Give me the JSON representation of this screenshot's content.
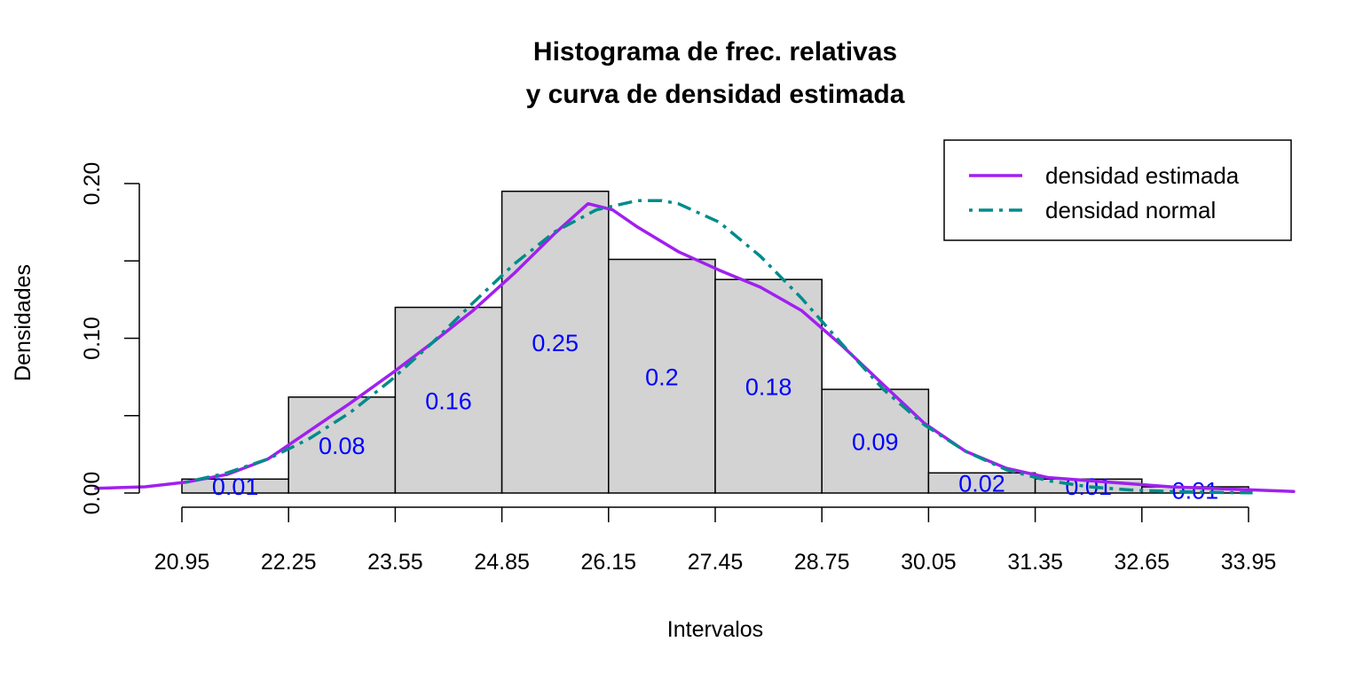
{
  "chart_data": {
    "type": "bar",
    "title": [
      "Histograma de frec. relativas",
      "y curva de densidad estimada"
    ],
    "xlabel": "Intervalos",
    "ylabel": "Densidades",
    "x_ticks": [
      "20.95",
      "22.25",
      "23.55",
      "24.85",
      "26.15",
      "27.45",
      "28.75",
      "30.05",
      "31.35",
      "32.65",
      "33.95"
    ],
    "y_ticks": [
      "0.00",
      "0.10",
      "0.20"
    ],
    "ylim": [
      0,
      0.2
    ],
    "bins": [
      {
        "from": 20.95,
        "to": 22.25,
        "density": 0.009,
        "label": "0.01"
      },
      {
        "from": 22.25,
        "to": 23.55,
        "density": 0.062,
        "label": "0.08"
      },
      {
        "from": 23.55,
        "to": 24.85,
        "density": 0.12,
        "label": "0.16"
      },
      {
        "from": 24.85,
        "to": 26.15,
        "density": 0.195,
        "label": "0.25"
      },
      {
        "from": 26.15,
        "to": 27.45,
        "density": 0.151,
        "label": "0.2"
      },
      {
        "from": 27.45,
        "to": 28.75,
        "density": 0.138,
        "label": "0.18"
      },
      {
        "from": 28.75,
        "to": 30.05,
        "density": 0.067,
        "label": "0.09"
      },
      {
        "from": 30.05,
        "to": 31.35,
        "density": 0.013,
        "label": "0.02"
      },
      {
        "from": 31.35,
        "to": 32.65,
        "density": 0.009,
        "label": "0.01"
      },
      {
        "from": 32.65,
        "to": 33.95,
        "density": 0.004,
        "label": "0.01"
      }
    ],
    "series": [
      {
        "name": "densidad estimada",
        "color": "#a020f0",
        "style": "solid",
        "x": [
          19.9,
          20.5,
          21.0,
          21.5,
          22.0,
          22.5,
          23.0,
          23.5,
          24.0,
          24.5,
          25.0,
          25.5,
          25.9,
          26.2,
          26.5,
          27.0,
          27.5,
          28.0,
          28.5,
          29.0,
          29.5,
          30.0,
          30.5,
          31.0,
          31.5,
          32.0,
          32.5,
          33.0,
          33.5,
          34.0,
          34.5
        ],
        "y": [
          0.003,
          0.004,
          0.007,
          0.012,
          0.022,
          0.04,
          0.058,
          0.077,
          0.097,
          0.118,
          0.142,
          0.168,
          0.187,
          0.183,
          0.172,
          0.156,
          0.144,
          0.133,
          0.118,
          0.095,
          0.07,
          0.045,
          0.027,
          0.016,
          0.01,
          0.008,
          0.006,
          0.004,
          0.003,
          0.002,
          0.001
        ]
      },
      {
        "name": "densidad normal",
        "color": "#008b8b",
        "style": "dotdash",
        "x": [
          21.0,
          21.5,
          22.0,
          22.5,
          23.0,
          23.5,
          24.0,
          24.5,
          25.0,
          25.5,
          26.0,
          26.5,
          26.8,
          27.0,
          27.5,
          28.0,
          28.5,
          29.0,
          29.5,
          30.0,
          30.5,
          31.0,
          31.5,
          32.0,
          32.5,
          33.0,
          33.5,
          34.0
        ],
        "y": [
          0.007,
          0.013,
          0.022,
          0.035,
          0.052,
          0.073,
          0.097,
          0.123,
          0.148,
          0.169,
          0.183,
          0.189,
          0.189,
          0.187,
          0.175,
          0.153,
          0.126,
          0.096,
          0.067,
          0.044,
          0.027,
          0.015,
          0.008,
          0.004,
          0.002,
          0.001,
          0.0004,
          0.0001
        ]
      }
    ],
    "bar_color": "#d3d3d3",
    "bar_label_color": "#0000ff",
    "legend_position": "top-right",
    "grid": false
  }
}
